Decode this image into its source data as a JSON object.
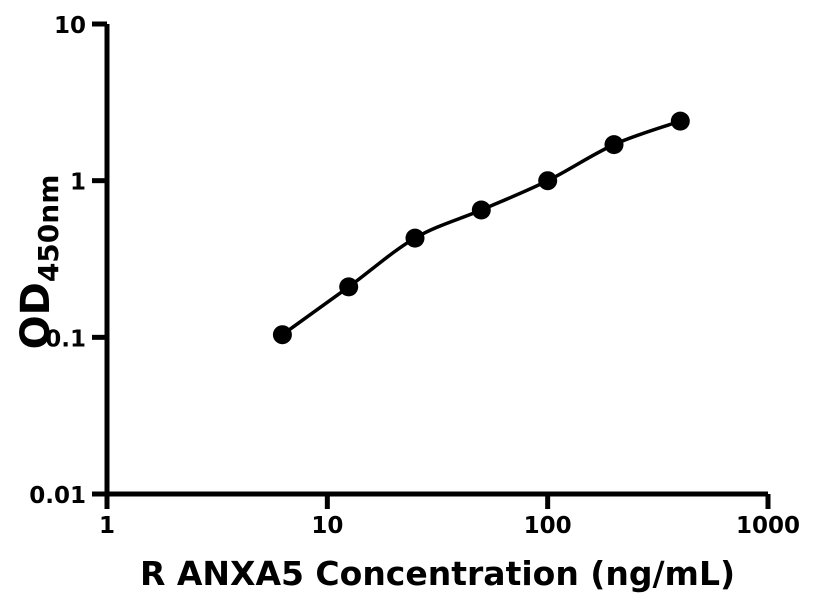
{
  "figure": {
    "background_color": "#ffffff",
    "foreground_color": "#000000"
  },
  "chart_data": {
    "type": "scatter",
    "subtype": "smooth-fit-line-with-markers",
    "title": "",
    "xlabel": "R ANXA5 Concentration (ng/mL)",
    "ylabel_main": "OD",
    "ylabel_subscript": "450nm",
    "xscale": "log",
    "yscale": "log",
    "xlim": [
      1,
      1000
    ],
    "ylim": [
      0.01,
      10
    ],
    "x_ticks": [
      1,
      10,
      100,
      1000
    ],
    "x_tick_labels": [
      "1",
      "10",
      "100",
      "1000"
    ],
    "y_ticks": [
      0.01,
      0.1,
      1,
      10
    ],
    "y_tick_labels": [
      "0.01",
      "0.1",
      "1",
      "10"
    ],
    "x": [
      6.25,
      12.5,
      25,
      50,
      100,
      200,
      400
    ],
    "y": [
      0.104,
      0.21,
      0.43,
      0.65,
      1.0,
      1.7,
      2.4
    ],
    "marker": "filled-circle",
    "marker_color": "#000000",
    "line": "smooth",
    "line_color": "#000000",
    "grid": false,
    "legend": false
  }
}
